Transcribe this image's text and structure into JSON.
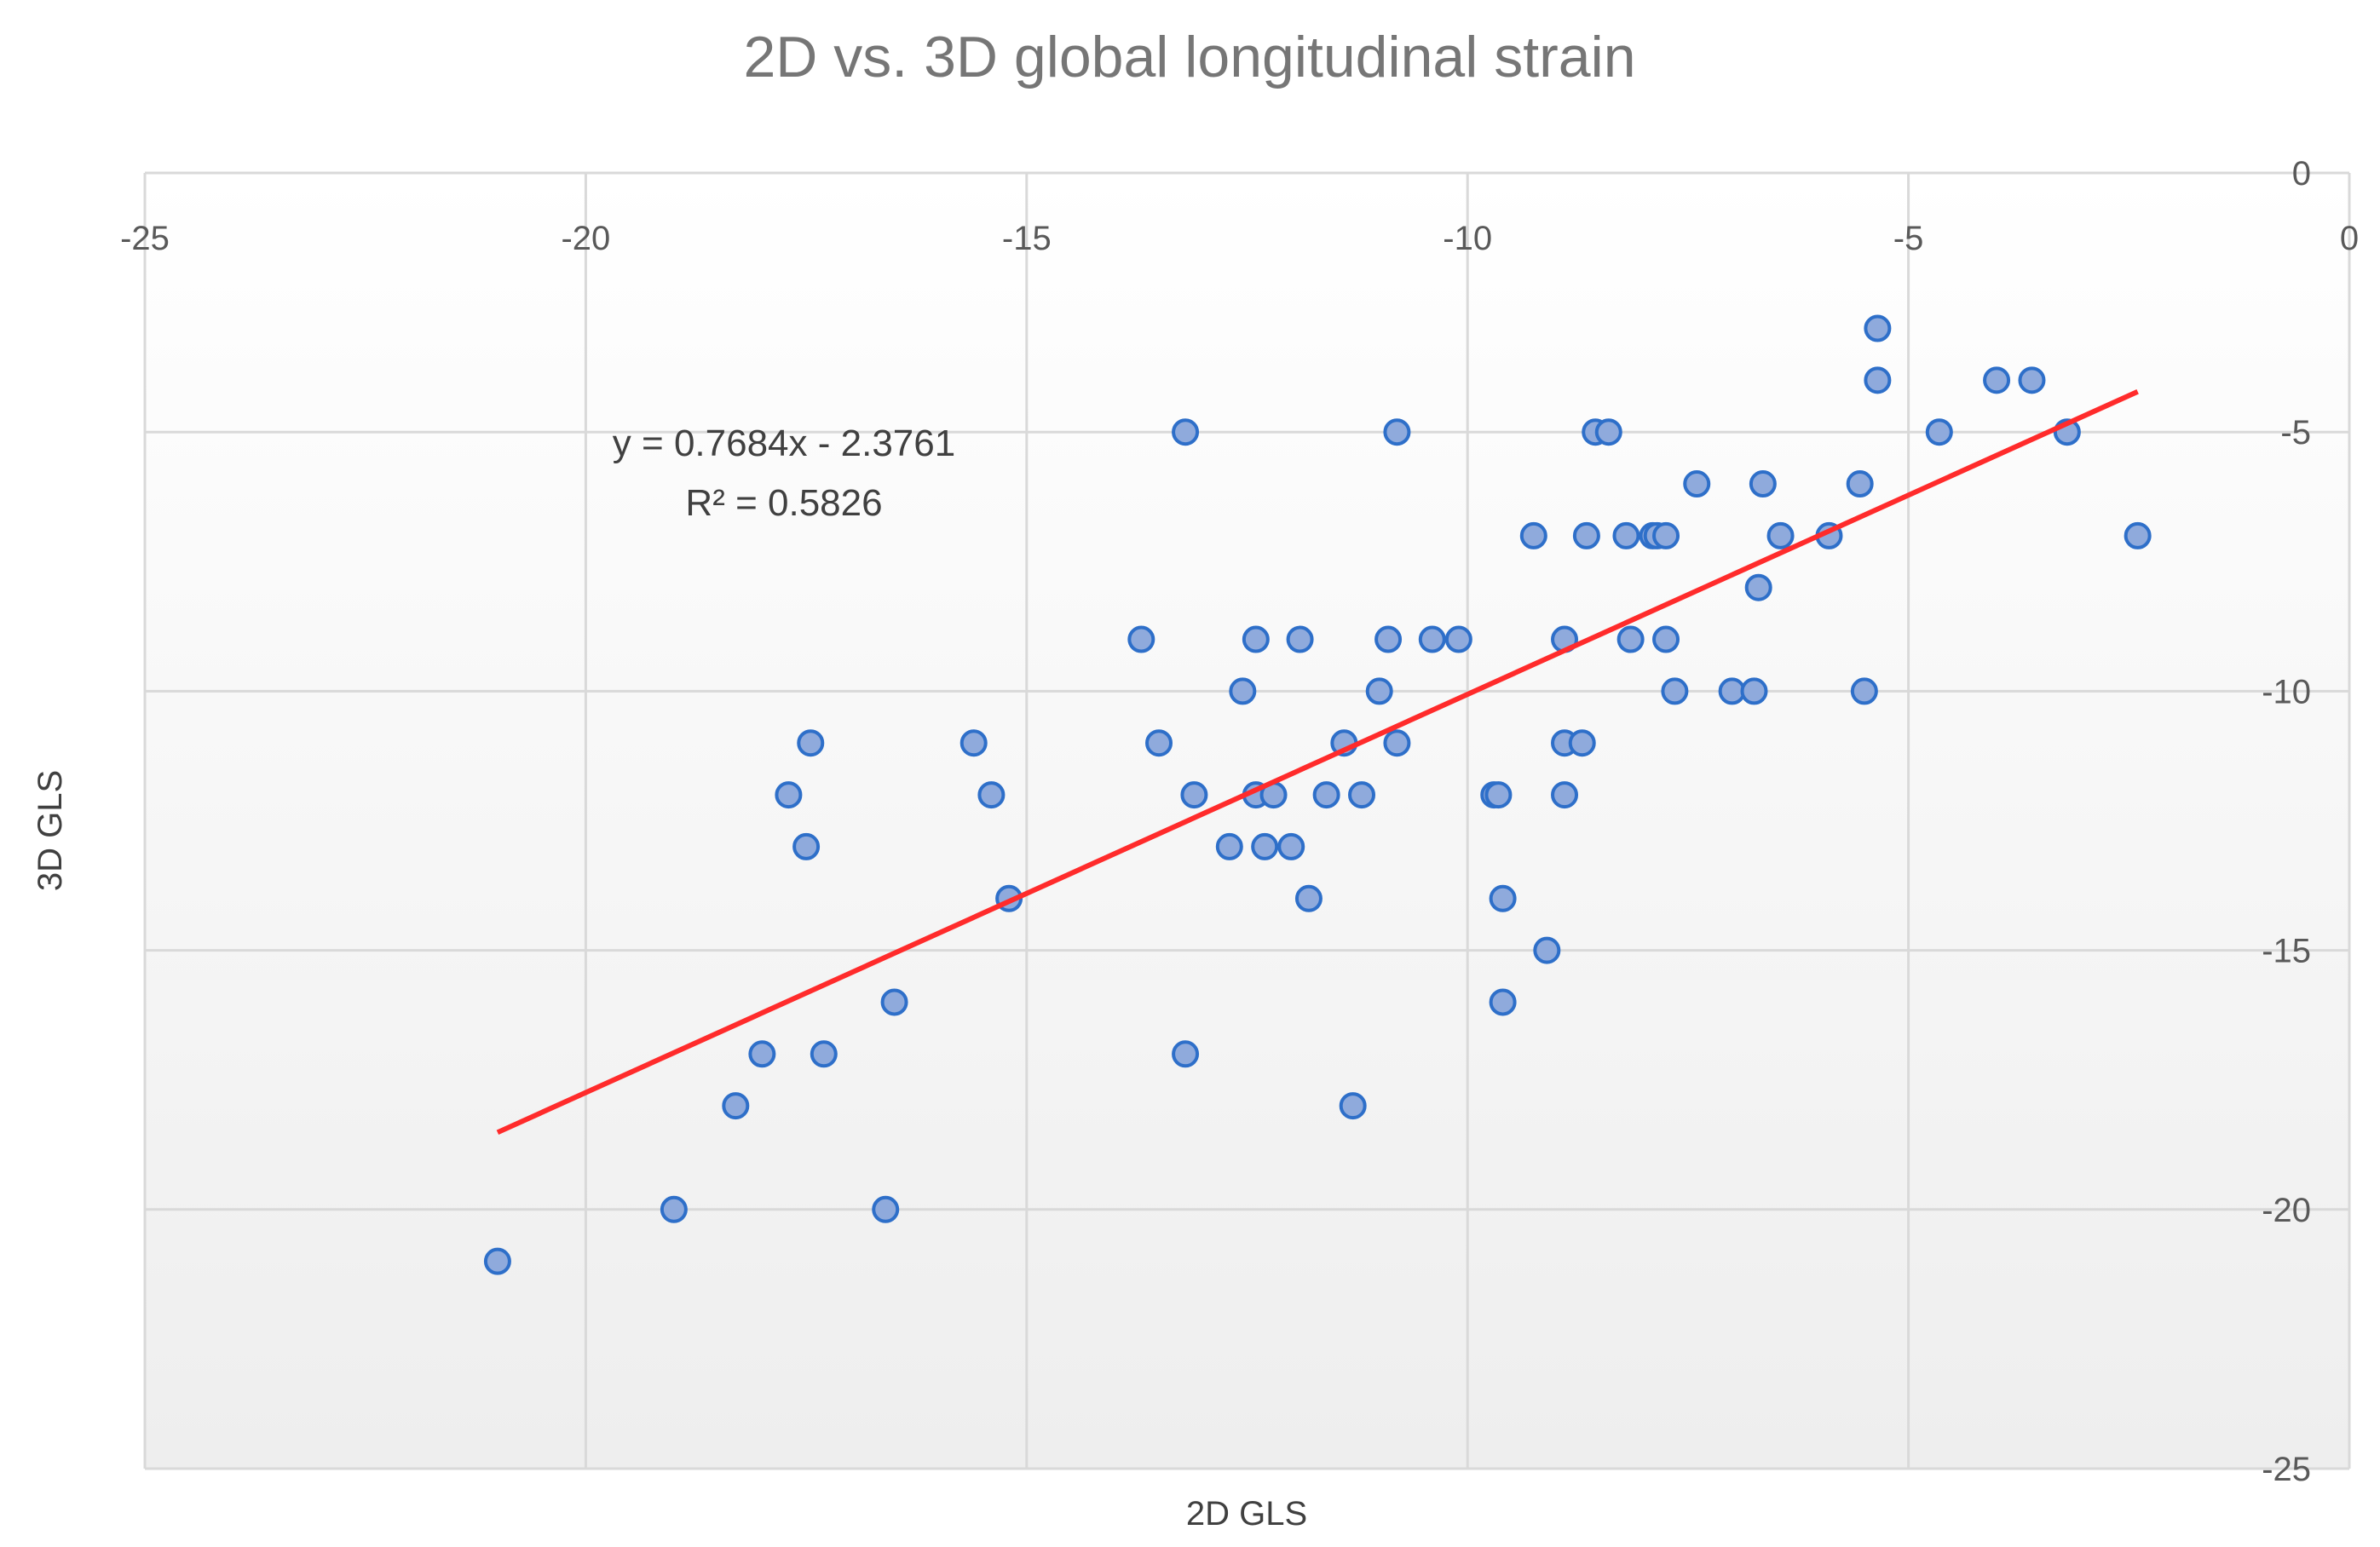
{
  "chart_data": {
    "type": "scatter",
    "title": "2D vs. 3D global longitudinal strain",
    "xlabel": "2D GLS",
    "ylabel": "3D GLS",
    "xlim": [
      -25,
      0
    ],
    "ylim": [
      -25,
      0
    ],
    "x_ticks": [
      -25,
      -20,
      -15,
      -10,
      -5,
      0
    ],
    "y_ticks": [
      0,
      -5,
      -10,
      -15,
      -20,
      -25
    ],
    "grid": true,
    "legend": "none",
    "colors": {
      "point_fill": "#8faadc",
      "point_stroke": "#2e6fc9",
      "trendline": "#ff2b2b",
      "grid": "#d9d9d9"
    },
    "series": [
      {
        "points": [
          [
            -21.0,
            -21.0
          ],
          [
            -19.0,
            -20.0
          ],
          [
            -16.6,
            -20.0
          ],
          [
            -18.3,
            -18.0
          ],
          [
            -11.3,
            -18.0
          ],
          [
            -18.0,
            -17.0
          ],
          [
            -17.3,
            -17.0
          ],
          [
            -13.2,
            -17.0
          ],
          [
            -16.5,
            -16.0
          ],
          [
            -9.6,
            -16.0
          ],
          [
            -9.1,
            -15.0
          ],
          [
            -15.2,
            -14.0
          ],
          [
            -11.8,
            -14.0
          ],
          [
            -9.6,
            -14.0
          ],
          [
            -17.5,
            -13.0
          ],
          [
            -12.7,
            -13.0
          ],
          [
            -12.3,
            -13.0
          ],
          [
            -12.0,
            -13.0
          ],
          [
            -17.7,
            -12.0
          ],
          [
            -15.4,
            -12.0
          ],
          [
            -13.1,
            -12.0
          ],
          [
            -12.4,
            -12.0
          ],
          [
            -12.2,
            -12.0
          ],
          [
            -11.6,
            -12.0
          ],
          [
            -11.2,
            -12.0
          ],
          [
            -9.7,
            -12.0
          ],
          [
            -9.65,
            -12.0
          ],
          [
            -8.9,
            -12.0
          ],
          [
            -17.45,
            -11.0
          ],
          [
            -15.6,
            -11.0
          ],
          [
            -13.5,
            -11.0
          ],
          [
            -11.4,
            -11.0
          ],
          [
            -10.8,
            -11.0
          ],
          [
            -8.9,
            -11.0
          ],
          [
            -8.7,
            -11.0
          ],
          [
            -12.55,
            -10.0
          ],
          [
            -11.0,
            -10.0
          ],
          [
            -7.65,
            -10.0
          ],
          [
            -7.0,
            -10.0
          ],
          [
            -6.75,
            -10.0
          ],
          [
            -5.5,
            -10.0
          ],
          [
            -13.7,
            -9.0
          ],
          [
            -12.4,
            -9.0
          ],
          [
            -11.9,
            -9.0
          ],
          [
            -10.9,
            -9.0
          ],
          [
            -10.4,
            -9.0
          ],
          [
            -10.1,
            -9.0
          ],
          [
            -8.9,
            -9.0
          ],
          [
            -8.15,
            -9.0
          ],
          [
            -7.75,
            -9.0
          ],
          [
            -9.25,
            -7.0
          ],
          [
            -8.65,
            -7.0
          ],
          [
            -8.2,
            -7.0
          ],
          [
            -7.9,
            -7.0
          ],
          [
            -7.85,
            -7.0
          ],
          [
            -7.75,
            -7.0
          ],
          [
            -6.45,
            -7.0
          ],
          [
            -5.9,
            -7.0
          ],
          [
            -2.4,
            -7.0
          ],
          [
            -6.7,
            -8.0
          ],
          [
            -7.4,
            -6.0
          ],
          [
            -6.65,
            -6.0
          ],
          [
            -5.55,
            -6.0
          ],
          [
            -13.2,
            -5.0
          ],
          [
            -10.8,
            -5.0
          ],
          [
            -8.55,
            -5.0
          ],
          [
            -8.4,
            -5.0
          ],
          [
            -4.65,
            -5.0
          ],
          [
            -3.2,
            -5.0
          ],
          [
            -5.35,
            -4.0
          ],
          [
            -4.0,
            -4.0
          ],
          [
            -3.6,
            -4.0
          ],
          [
            -5.35,
            -3.0
          ]
        ]
      }
    ],
    "trendline": {
      "slope": 0.7684,
      "intercept": -2.3761,
      "x_range": [
        -21.0,
        -2.4
      ],
      "equation": "y = 0.7684x - 2.3761",
      "r_squared": "R² = 0.5826"
    }
  }
}
